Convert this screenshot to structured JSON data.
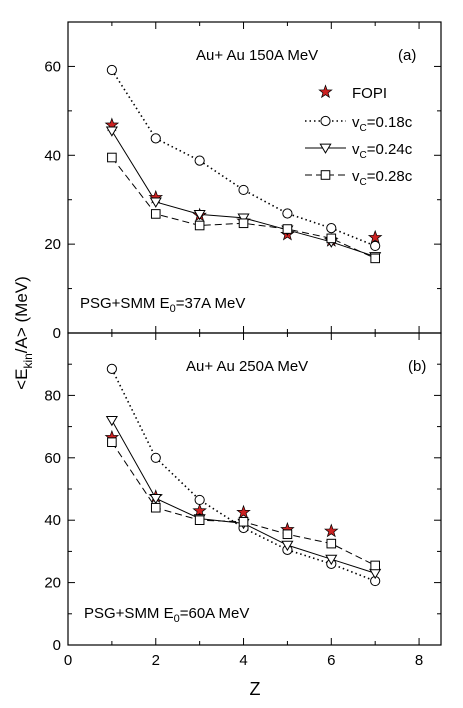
{
  "figure": {
    "ylabel_main": "<E",
    "ylabel_sub": "kin",
    "ylabel_rest": "/A> (MeV)",
    "xlabel": "Z"
  },
  "legend": {
    "fopi": "FOPI",
    "v_prefix": "v",
    "v_sub": "C",
    "v1": "=0.18c",
    "v2": "=0.24c",
    "v3": "=0.28c"
  },
  "chart_data": [
    {
      "type": "line",
      "panel_label": "(a)",
      "reaction": "Au+ Au  150A MeV",
      "model_prefix": "PSG+SMM E",
      "model_sub": "0",
      "model_suffix": "=37A MeV",
      "xlim": [
        0,
        8.5
      ],
      "ylim": [
        0,
        70
      ],
      "x_ticks": [
        0,
        2,
        4,
        6,
        8
      ],
      "y_ticks": [
        0,
        20,
        40,
        60
      ],
      "grid": false,
      "legend_position": "right",
      "series": [
        {
          "name": "FOPI",
          "marker": "star",
          "color": "#cc2222",
          "x": [
            1,
            2,
            3,
            4,
            5,
            6,
            7
          ],
          "y": [
            46.8,
            30.5,
            26.5,
            25.2,
            22.2,
            20.8,
            21.5
          ]
        },
        {
          "name": "vC=0.18c",
          "marker": "circle",
          "dash": "dotted",
          "x": [
            1,
            2,
            3,
            4,
            5,
            6,
            7
          ],
          "y": [
            59.2,
            43.8,
            38.8,
            32.2,
            26.9,
            23.6,
            19.6
          ]
        },
        {
          "name": "vC=0.24c",
          "marker": "triangle-down",
          "dash": "solid",
          "x": [
            1,
            2,
            3,
            4,
            5,
            6,
            7
          ],
          "y": [
            45.5,
            29.5,
            26.7,
            25.9,
            23.2,
            20.5,
            17.2
          ]
        },
        {
          "name": "vC=0.28c",
          "marker": "square",
          "dash": "dashed",
          "x": [
            1,
            2,
            3,
            4,
            5,
            6,
            7
          ],
          "y": [
            39.5,
            26.8,
            24.2,
            24.7,
            23.4,
            21.3,
            16.8
          ]
        }
      ]
    },
    {
      "type": "line",
      "panel_label": "(b)",
      "reaction": "Au+ Au  250A MeV",
      "model_prefix": "PSG+SMM E",
      "model_sub": "0",
      "model_suffix": "=60A MeV",
      "xlim": [
        0,
        8.5
      ],
      "ylim": [
        0,
        100
      ],
      "x_ticks": [
        0,
        2,
        4,
        6,
        8
      ],
      "x_tick_labels_shown": true,
      "y_ticks": [
        0,
        20,
        40,
        60,
        80
      ],
      "grid": false,
      "series": [
        {
          "name": "FOPI",
          "marker": "star",
          "color": "#cc2222",
          "x": [
            1,
            2,
            3,
            4,
            5,
            6
          ],
          "y": [
            66.5,
            47.5,
            43.0,
            42.5,
            37.0,
            36.5
          ]
        },
        {
          "name": "vC=0.18c",
          "marker": "circle",
          "dash": "dotted",
          "x": [
            1,
            2,
            3,
            4,
            5,
            6,
            7
          ],
          "y": [
            88.5,
            60.0,
            46.5,
            37.5,
            30.5,
            26.0,
            20.5
          ]
        },
        {
          "name": "vC=0.24c",
          "marker": "triangle-down",
          "dash": "solid",
          "x": [
            1,
            2,
            3,
            4,
            5,
            6,
            7
          ],
          "y": [
            72.0,
            47.0,
            40.5,
            39.0,
            32.0,
            27.5,
            23.0
          ]
        },
        {
          "name": "vC=0.28c",
          "marker": "square",
          "dash": "dashed",
          "x": [
            1,
            2,
            3,
            4,
            5,
            6,
            7
          ],
          "y": [
            65.0,
            44.0,
            40.0,
            39.5,
            35.5,
            32.5,
            25.5
          ]
        }
      ]
    }
  ]
}
